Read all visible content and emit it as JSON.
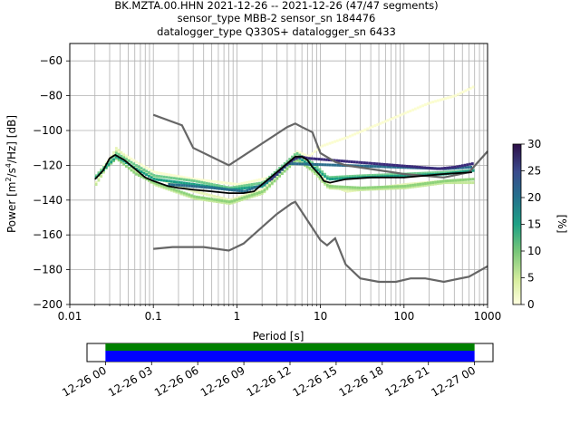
{
  "title_lines": [
    "BK.MZTA.00.HHN   2021-12-26 -- 2021-12-26  (47/47 segments)",
    "sensor_type MBB-2 sensor_sn 184476",
    "datalogger_type Q330S+ datalogger_sn 6433"
  ],
  "chart_data": {
    "type": "heatmap",
    "xlabel": "Period [s]",
    "ylabel_parts": [
      "Power [m",
      "2",
      "/s",
      "4",
      "/Hz] [dB]"
    ],
    "x_scale": "log",
    "xlim": [
      0.01,
      1000
    ],
    "ylim": [
      -200,
      -50
    ],
    "x_tick_values": [
      0.01,
      0.1,
      1,
      10,
      100,
      1000
    ],
    "x_tick_labels": [
      "0.01",
      "0.1",
      "1",
      "10",
      "100",
      "1000"
    ],
    "y_tick_values": [
      -60,
      -80,
      -100,
      -120,
      -140,
      -160,
      -180,
      -200
    ],
    "y_tick_labels": [
      "−60",
      "−80",
      "−100",
      "−120",
      "−140",
      "−160",
      "−180",
      "−200"
    ],
    "grid": true,
    "colorbar": {
      "label": "[%]",
      "range": [
        0,
        30
      ],
      "tick_values": [
        0,
        5,
        10,
        15,
        20,
        25,
        30
      ],
      "tick_labels": [
        "0",
        "5",
        "10",
        "15",
        "20",
        "25",
        "30"
      ]
    },
    "mode_curve": [
      [
        0.02,
        -128
      ],
      [
        0.025,
        -123
      ],
      [
        0.03,
        -116
      ],
      [
        0.035,
        -114
      ],
      [
        0.045,
        -117
      ],
      [
        0.06,
        -122
      ],
      [
        0.08,
        -127
      ],
      [
        0.1,
        -129
      ],
      [
        0.15,
        -132
      ],
      [
        0.2,
        -133
      ],
      [
        0.3,
        -134
      ],
      [
        0.5,
        -135
      ],
      [
        0.8,
        -136
      ],
      [
        1.2,
        -136
      ],
      [
        1.6,
        -135
      ],
      [
        2,
        -131
      ],
      [
        3,
        -124
      ],
      [
        4,
        -119
      ],
      [
        5,
        -115
      ],
      [
        6,
        -115
      ],
      [
        7,
        -117
      ],
      [
        8,
        -121
      ],
      [
        10,
        -126
      ],
      [
        11,
        -129
      ],
      [
        13,
        -130
      ],
      [
        20,
        -128
      ],
      [
        40,
        -127
      ],
      [
        100,
        -127
      ],
      [
        300,
        -125
      ],
      [
        650,
        -124
      ]
    ],
    "nhnm": [
      [
        0.1,
        -91
      ],
      [
        0.22,
        -97
      ],
      [
        0.3,
        -110
      ],
      [
        0.8,
        -120
      ],
      [
        4,
        -98
      ],
      [
        5,
        -96
      ],
      [
        6,
        -98
      ],
      [
        8,
        -101
      ],
      [
        10,
        -113
      ],
      [
        15,
        -118
      ],
      [
        20,
        -120
      ],
      [
        100,
        -125
      ],
      [
        300,
        -127
      ],
      [
        600,
        -124
      ],
      [
        1000,
        -112
      ]
    ],
    "nlnm": [
      [
        0.1,
        -168
      ],
      [
        0.17,
        -167
      ],
      [
        0.4,
        -167
      ],
      [
        0.8,
        -169
      ],
      [
        1.2,
        -165
      ],
      [
        3,
        -148
      ],
      [
        4.5,
        -142
      ],
      [
        5,
        -141
      ],
      [
        10,
        -163
      ],
      [
        12,
        -166
      ],
      [
        15,
        -162
      ],
      [
        20,
        -177
      ],
      [
        30,
        -185
      ],
      [
        50,
        -187
      ],
      [
        80,
        -187
      ],
      [
        120,
        -185
      ],
      [
        180,
        -185
      ],
      [
        300,
        -187
      ],
      [
        600,
        -184
      ],
      [
        1000,
        -178
      ]
    ],
    "hist_bands": [
      {
        "color": "#fbfdd0",
        "points": [
          [
            0.02,
            -126
          ],
          [
            0.035,
            -111
          ],
          [
            0.06,
            -118
          ],
          [
            0.1,
            -124
          ],
          [
            0.3,
            -128
          ],
          [
            1,
            -131
          ],
          [
            3,
            -126
          ],
          [
            5,
            -112
          ],
          [
            7,
            -115
          ],
          [
            10,
            -109
          ],
          [
            20,
            -104
          ],
          [
            50,
            -96
          ],
          [
            100,
            -90
          ],
          [
            200,
            -84
          ],
          [
            400,
            -80
          ],
          [
            650,
            -75
          ]
        ]
      },
      {
        "color": "#e8f5b8",
        "points": [
          [
            0.02,
            -130
          ],
          [
            0.035,
            -110
          ],
          [
            0.06,
            -121
          ],
          [
            0.1,
            -127
          ],
          [
            0.3,
            -135
          ],
          [
            0.8,
            -140
          ],
          [
            2,
            -134
          ],
          [
            5,
            -114
          ],
          [
            8,
            -120
          ],
          [
            12,
            -131
          ],
          [
            20,
            -135
          ],
          [
            100,
            -131
          ],
          [
            300,
            -129
          ],
          [
            650,
            -128
          ]
        ]
      },
      {
        "color": "#c4e89a",
        "points": [
          [
            0.02,
            -131
          ],
          [
            0.035,
            -112
          ],
          [
            0.06,
            -124
          ],
          [
            0.1,
            -131
          ],
          [
            0.3,
            -139
          ],
          [
            0.8,
            -142
          ],
          [
            2,
            -136
          ],
          [
            5,
            -116
          ],
          [
            8,
            -124
          ],
          [
            12,
            -133
          ],
          [
            30,
            -134
          ],
          [
            100,
            -133
          ],
          [
            300,
            -130
          ],
          [
            650,
            -130
          ]
        ]
      },
      {
        "color": "#8dd27a",
        "points": [
          [
            0.02,
            -127
          ],
          [
            0.035,
            -116
          ],
          [
            0.06,
            -125
          ],
          [
            0.1,
            -130
          ],
          [
            0.3,
            -138
          ],
          [
            0.8,
            -141
          ],
          [
            2,
            -135
          ],
          [
            5,
            -117
          ],
          [
            8,
            -123
          ],
          [
            12,
            -132
          ],
          [
            30,
            -133
          ],
          [
            100,
            -132
          ],
          [
            300,
            -129
          ],
          [
            650,
            -128
          ]
        ]
      },
      {
        "color": "#6fcb8c",
        "points": [
          [
            0.02,
            -126
          ],
          [
            0.035,
            -113
          ],
          [
            0.06,
            -120
          ],
          [
            0.1,
            -126
          ],
          [
            0.3,
            -129
          ],
          [
            0.8,
            -133
          ],
          [
            2,
            -130
          ],
          [
            5,
            -113
          ],
          [
            8,
            -119
          ],
          [
            12,
            -127
          ],
          [
            30,
            -126
          ],
          [
            100,
            -125
          ],
          [
            300,
            -124
          ],
          [
            650,
            -123
          ]
        ]
      },
      {
        "color": "#1a9f83",
        "points": [
          [
            0.02,
            -127
          ],
          [
            0.035,
            -115
          ],
          [
            0.06,
            -122
          ],
          [
            0.1,
            -128
          ],
          [
            0.3,
            -131
          ],
          [
            0.8,
            -134
          ],
          [
            2,
            -132
          ],
          [
            5,
            -115
          ],
          [
            8,
            -121
          ],
          [
            12,
            -128
          ],
          [
            30,
            -127
          ],
          [
            100,
            -126
          ],
          [
            300,
            -125
          ],
          [
            650,
            -123
          ]
        ]
      },
      {
        "color": "#2a6d8c",
        "points": [
          [
            0.15,
            -131
          ],
          [
            0.5,
            -133
          ],
          [
            1.2,
            -135
          ],
          [
            2,
            -131
          ],
          [
            3,
            -125
          ],
          [
            4,
            -119
          ],
          [
            300,
            -122
          ],
          [
            650,
            -121
          ]
        ]
      },
      {
        "color": "#3b2a7a",
        "points": [
          [
            2.5,
            -128
          ],
          [
            3.5,
            -121
          ],
          [
            4.5,
            -117
          ],
          [
            5.5,
            -115
          ],
          [
            7,
            -116
          ],
          [
            250,
            -122
          ],
          [
            400,
            -121
          ],
          [
            650,
            -119
          ]
        ]
      }
    ],
    "timeline": {
      "tick_labels": [
        "12-26 00",
        "12-26 03",
        "12-26 06",
        "12-26 09",
        "12-26 12",
        "12-26 15",
        "12-26 18",
        "12-26 21",
        "12-27 00"
      ],
      "tick_hours": [
        0,
        3,
        6,
        9,
        12,
        15,
        18,
        21,
        24
      ],
      "range_hours": [
        -1.2,
        25.2
      ],
      "data_hours": [
        0,
        24
      ],
      "colors": [
        "#008000",
        "#0000ff"
      ]
    }
  }
}
